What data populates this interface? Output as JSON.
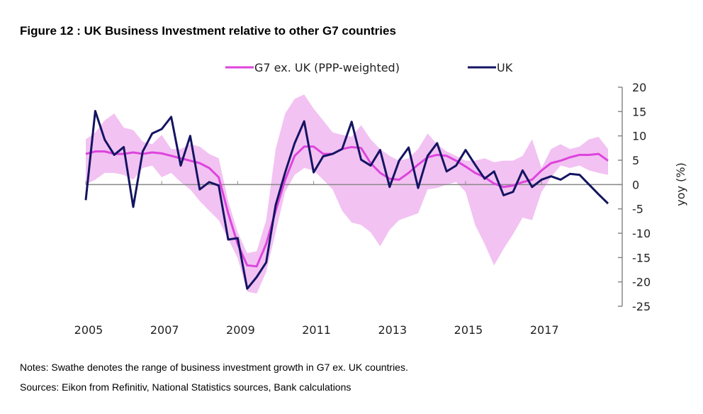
{
  "chart_data": {
    "type": "line",
    "title": "Figure 12 : UK Business Investment relative to other G7 countries",
    "xlabel": "",
    "ylabel": "yoy (%)",
    "ylim": [
      -25,
      20
    ],
    "yticks": [
      20,
      15,
      10,
      5,
      0,
      -5,
      -10,
      -15,
      -20,
      -25
    ],
    "x_start": "2005 Q1",
    "frequency": "quarterly",
    "xtick_labels": [
      "2005",
      "2007",
      "2009",
      "2011",
      "2013",
      "2015",
      "2017"
    ],
    "legend_position": "top",
    "series": [
      {
        "name": "G7 ex. UK (PPP-weighted)",
        "color": "#dd44dd",
        "values": [
          6.3,
          6.8,
          6.8,
          6.3,
          6.3,
          6.6,
          6.3,
          6.6,
          6.4,
          5.9,
          5.4,
          4.9,
          4.4,
          3.4,
          1.5,
          -5.9,
          -12.2,
          -16.6,
          -16.8,
          -12.2,
          -5.4,
          1.0,
          5.9,
          7.8,
          7.8,
          6.3,
          6.3,
          7.3,
          7.7,
          7.5,
          4.4,
          2.4,
          1.2,
          1.0,
          2.4,
          4.1,
          5.6,
          6.1,
          5.9,
          4.9,
          3.7,
          2.4,
          1.5,
          0.2,
          -0.5,
          -0.2,
          0.5,
          1.0,
          2.9,
          4.4,
          4.9,
          5.6,
          6.1,
          6.1,
          6.3,
          4.9
        ]
      },
      {
        "name": "UK",
        "color": "#141463",
        "values": [
          -3.2,
          15.1,
          9.2,
          6.1,
          7.7,
          -4.6,
          6.8,
          10.5,
          11.4,
          13.9,
          3.9,
          10.0,
          -1.0,
          0.5,
          -0.2,
          -11.3,
          -11.0,
          -21.4,
          -19.0,
          -16.0,
          -4.2,
          2.5,
          8.5,
          13.0,
          2.5,
          5.8,
          6.3,
          7.3,
          12.9,
          5.1,
          3.9,
          7.1,
          -0.5,
          4.9,
          7.6,
          -0.7,
          5.9,
          8.5,
          2.7,
          3.9,
          7.1,
          4.1,
          1.2,
          2.7,
          -2.2,
          -1.5,
          2.9,
          -0.5,
          1.0,
          1.7,
          1.0,
          2.2,
          2.0,
          0.0,
          -2.0,
          -3.9
        ]
      }
    ],
    "range_band": {
      "name": "Swathe (range of G7 ex. UK)",
      "color": "#f2c2f2",
      "upper": [
        9.3,
        10.7,
        13.2,
        14.6,
        11.7,
        11.2,
        8.8,
        8.3,
        10.2,
        7.3,
        7.3,
        8.3,
        7.8,
        6.3,
        5.4,
        -3.4,
        -9.8,
        -14.1,
        -13.7,
        -7.3,
        7.3,
        14.6,
        17.6,
        18.5,
        15.6,
        13.2,
        10.7,
        10.2,
        9.8,
        12.2,
        9.3,
        7.3,
        5.9,
        4.9,
        5.4,
        7.3,
        10.5,
        8.3,
        6.8,
        5.9,
        4.9,
        4.9,
        5.4,
        4.6,
        4.9,
        4.9,
        5.9,
        9.3,
        3.4,
        7.3,
        8.3,
        7.3,
        7.8,
        9.3,
        9.8,
        7.3
      ],
      "lower": [
        0.0,
        1.0,
        2.4,
        2.4,
        2.0,
        1.0,
        3.4,
        3.9,
        1.5,
        2.4,
        0.5,
        -1.0,
        -3.4,
        -5.4,
        -7.3,
        -11.2,
        -15.1,
        -22.0,
        -22.4,
        -18.0,
        -9.8,
        -1.5,
        2.0,
        3.4,
        2.9,
        1.0,
        -1.0,
        -5.4,
        -7.8,
        -8.3,
        -9.8,
        -12.7,
        -9.3,
        -7.3,
        -6.6,
        -5.9,
        -1.0,
        -0.7,
        0.0,
        0.5,
        -1.5,
        -8.3,
        -12.2,
        -16.6,
        -13.2,
        -10.2,
        -6.8,
        -7.3,
        -1.5,
        1.5,
        3.9,
        3.4,
        3.9,
        2.9,
        2.4,
        2.0
      ]
    }
  },
  "notes": "Notes: Swathe denotes the range of business investment growth in G7 ex. UK countries.",
  "sources": "Sources: Eikon from Refinitiv, National Statistics sources, Bank calculations"
}
